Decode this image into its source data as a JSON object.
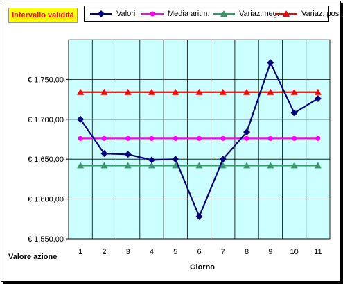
{
  "chart_data": {
    "type": "line",
    "title": "Intervallo validità",
    "xlabel": "Giorno",
    "ylabel": "Valore azione",
    "categories": [
      "1",
      "2",
      "3",
      "4",
      "5",
      "6",
      "7",
      "8",
      "9",
      "10",
      "11"
    ],
    "ylim": [
      1550,
      1800
    ],
    "yticks": [
      1550,
      1600,
      1650,
      1700,
      1750
    ],
    "ytick_labels": [
      "€ 1.550,00",
      "€ 1.600,00",
      "€ 1.650,00",
      "€ 1.700,00",
      "€ 1.750,00"
    ],
    "grid": true,
    "legend_position": "top",
    "plot_background": "#ccffff",
    "series": [
      {
        "name": "Valori",
        "color": "#000080",
        "marker": "diamond",
        "values": [
          1700,
          1657,
          1656,
          1649,
          1650,
          1578,
          1650,
          1684,
          1771,
          1708,
          1726
        ]
      },
      {
        "name": "Media aritm.",
        "color": "#ff00ff",
        "marker": "circle",
        "values": [
          1676,
          1676,
          1676,
          1676,
          1676,
          1676,
          1676,
          1676,
          1676,
          1676,
          1676
        ]
      },
      {
        "name": "Variaz. neg.",
        "color": "#339966",
        "marker": "triangle",
        "values": [
          1642,
          1642,
          1642,
          1642,
          1642,
          1642,
          1642,
          1642,
          1642,
          1642,
          1642
        ]
      },
      {
        "name": "Variaz. pos.",
        "color": "#ff0000",
        "marker": "triangle",
        "values": [
          1734,
          1734,
          1734,
          1734,
          1734,
          1734,
          1734,
          1734,
          1734,
          1734,
          1734
        ]
      }
    ]
  }
}
